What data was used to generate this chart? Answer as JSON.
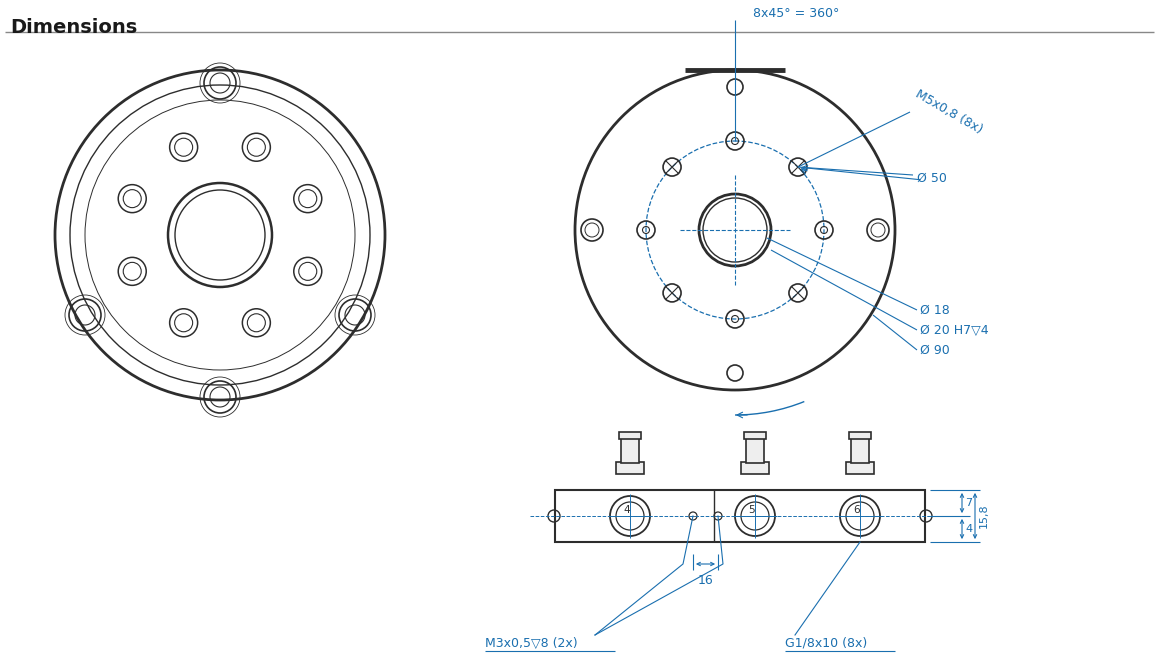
{
  "title": "Dimensions",
  "bg_color": "#ffffff",
  "line_color": "#2d2d2d",
  "dim_color": "#1a6faf",
  "title_color": "#1a1a1a",
  "annotations": {
    "angle_label": "8x45° = 360°",
    "bolt_circle": "M5x0,8 (8x)",
    "d50": "Ø 50",
    "d18": "Ø 18",
    "d20": "Ø 20 H7▽4",
    "d90": "Ø 90",
    "m3": "M3x0,5▽8 (2x)",
    "g1": "G1/8x10 (8x)",
    "dim16": "16",
    "dim4": "4",
    "dim7": "7",
    "dim158": "15,8"
  }
}
